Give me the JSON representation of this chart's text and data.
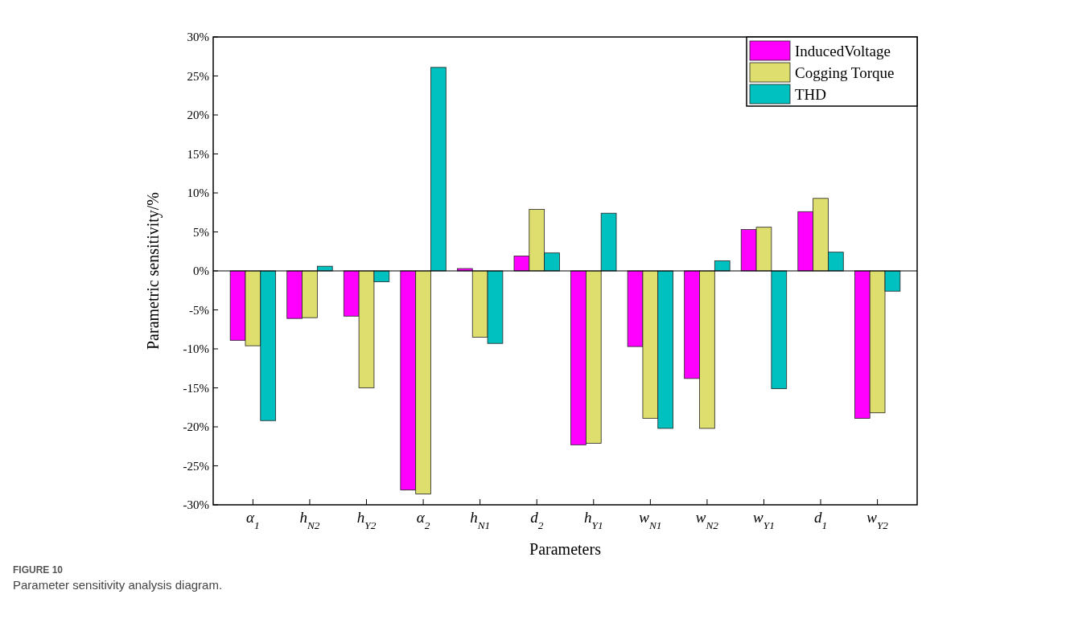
{
  "chart_data": {
    "type": "bar",
    "xlabel": "Parameters",
    "ylabel": "Parametric sensitivity/%",
    "categories": [
      "α$_{1}$",
      "h$_{N2}$",
      "h$_{Y2}$",
      "α$_{2}$",
      "h$_{N1}$",
      "d$_{2}$",
      "h$_{Y1}$",
      "w$_{N1}$",
      "w$_{N2}$",
      "w$_{Y1}$",
      "d$_{1}$",
      "w$_{Y2}$"
    ],
    "series": [
      {
        "name": "InducedVoltage",
        "color": "#ff00ff",
        "values": [
          -8.9,
          -6.1,
          -5.8,
          -28.1,
          0.3,
          1.9,
          -22.3,
          -9.7,
          -13.8,
          5.3,
          7.6,
          -18.9
        ]
      },
      {
        "name": "Cogging Torque",
        "color": "#dede6e",
        "values": [
          -9.6,
          -6.0,
          -15.0,
          -28.6,
          -8.5,
          7.9,
          -22.1,
          -18.9,
          -20.2,
          5.6,
          9.3,
          -18.2
        ]
      },
      {
        "name": "THD",
        "color": "#00c0c0",
        "values": [
          -19.2,
          0.6,
          -1.4,
          26.1,
          -9.3,
          2.3,
          7.4,
          -20.2,
          1.3,
          -15.1,
          2.4,
          -2.6
        ]
      }
    ],
    "ylim": [
      -30,
      30
    ],
    "yticks": [
      {
        "value": -30,
        "label": "-30%"
      },
      {
        "value": -25,
        "label": "-25%"
      },
      {
        "value": -20,
        "label": "-20%"
      },
      {
        "value": -15,
        "label": "-15%"
      },
      {
        "value": -10,
        "label": "-10%"
      },
      {
        "value": -5,
        "label": "-5%"
      },
      {
        "value": 0,
        "label": "0%"
      },
      {
        "value": 5,
        "label": "5%"
      },
      {
        "value": 10,
        "label": "10%"
      },
      {
        "value": 15,
        "label": "15%"
      },
      {
        "value": 20,
        "label": "20%"
      },
      {
        "value": 25,
        "label": "25%"
      },
      {
        "value": 30,
        "label": "30%"
      }
    ],
    "legend": "top right",
    "annotations": [
      "FIGURE 10",
      "Parameter sensitivity analysis diagram."
    ]
  }
}
